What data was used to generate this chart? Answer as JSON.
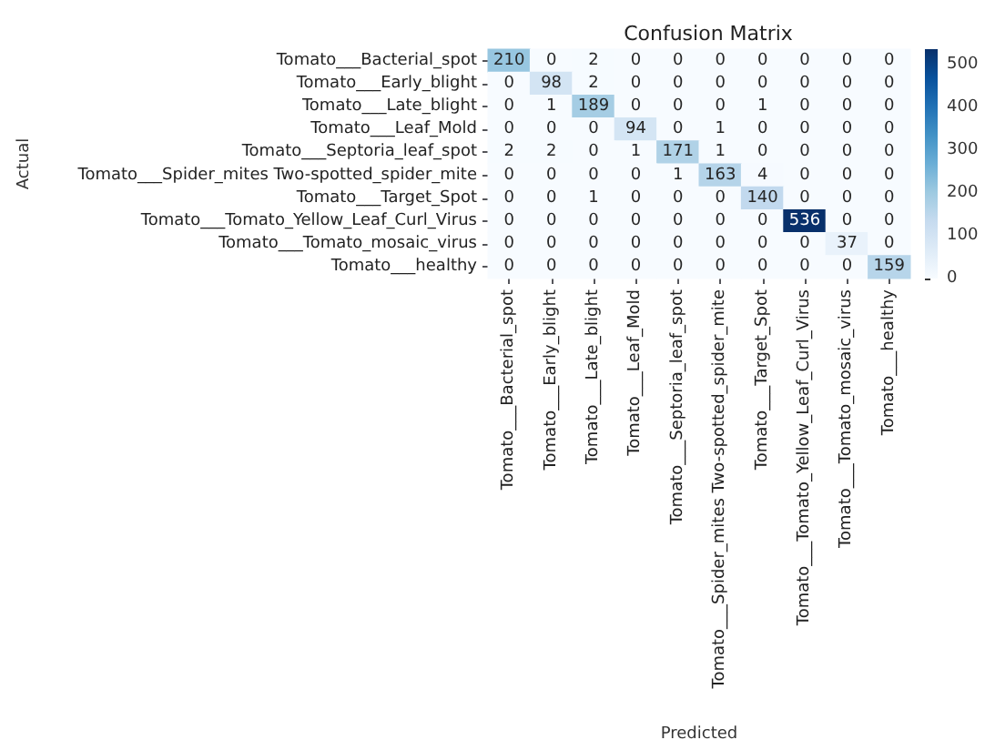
{
  "chart_data": {
    "type": "heatmap",
    "title": "Confusion Matrix",
    "xlabel": "Predicted",
    "ylabel": "Actual",
    "categories": [
      "Tomato___Bacterial_spot",
      "Tomato___Early_blight",
      "Tomato___Late_blight",
      "Tomato___Leaf_Mold",
      "Tomato___Septoria_leaf_spot",
      "Tomato___Spider_mites Two-spotted_spider_mite",
      "Tomato___Target_Spot",
      "Tomato___Tomato_Yellow_Leaf_Curl_Virus",
      "Tomato___Tomato_mosaic_virus",
      "Tomato___healthy"
    ],
    "y_categories": [
      "Tomato___Bacterial_spot",
      "Tomato___Early_blight",
      "Tomato___Late_blight",
      "Tomato___Leaf_Mold",
      "Tomato___Septoria_leaf_spot",
      "Tomato___Spider_mites Two-spotted_spider_mite",
      "Tomato___Target_Spot",
      "Tomato___Tomato_Yellow_Leaf_Curl_Virus",
      "Tomato___Tomato_mosaic_virus",
      "Tomato___healthy"
    ],
    "cells": [
      [
        210,
        0,
        2,
        0,
        0,
        0,
        0,
        0,
        0,
        0
      ],
      [
        0,
        98,
        2,
        0,
        0,
        0,
        0,
        0,
        0,
        0
      ],
      [
        0,
        1,
        189,
        0,
        0,
        0,
        1,
        0,
        0,
        0
      ],
      [
        0,
        0,
        0,
        94,
        0,
        1,
        0,
        0,
        0,
        0
      ],
      [
        2,
        2,
        0,
        1,
        171,
        1,
        0,
        0,
        0,
        0
      ],
      [
        0,
        0,
        0,
        0,
        1,
        163,
        4,
        0,
        0,
        0
      ],
      [
        0,
        0,
        1,
        0,
        0,
        0,
        140,
        0,
        0,
        0
      ],
      [
        0,
        0,
        0,
        0,
        0,
        0,
        0,
        536,
        0,
        0
      ],
      [
        0,
        0,
        0,
        0,
        0,
        0,
        0,
        0,
        37,
        0
      ],
      [
        0,
        0,
        0,
        0,
        0,
        0,
        0,
        0,
        0,
        159
      ]
    ],
    "data_labels": true,
    "clim": [
      0,
      536
    ],
    "cticks": [
      0,
      100,
      200,
      300,
      400,
      500
    ]
  }
}
